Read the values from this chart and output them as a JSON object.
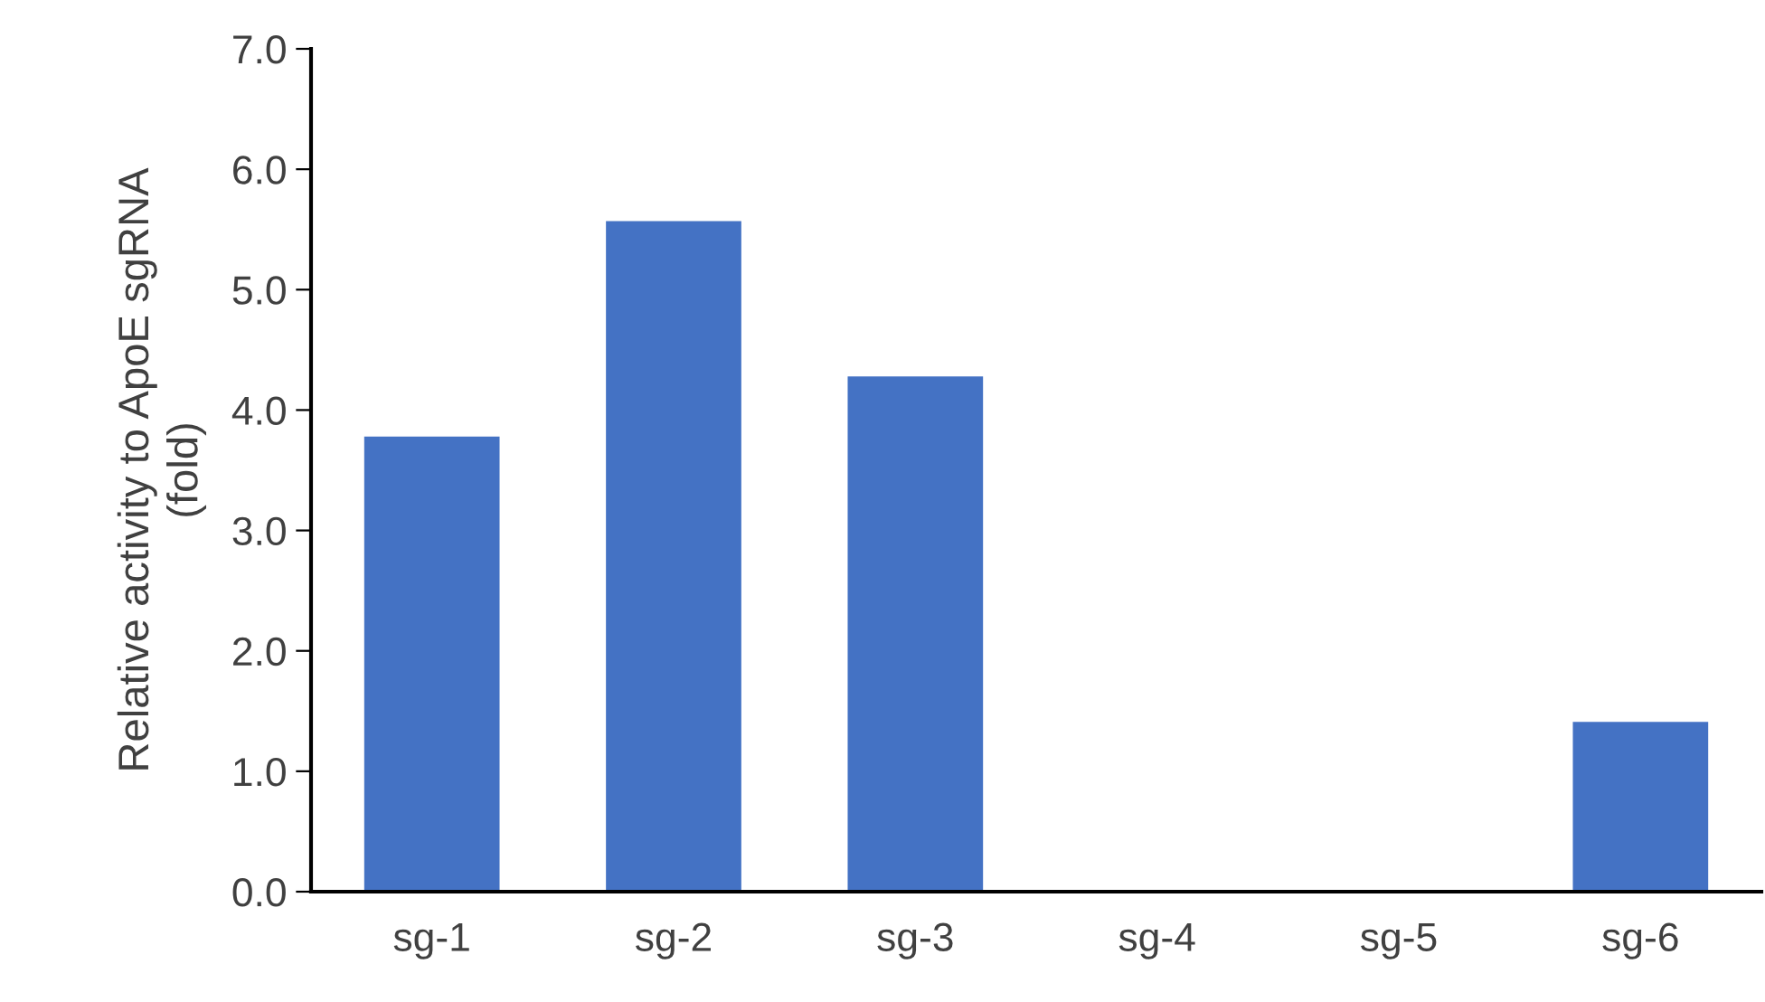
{
  "chart_data": {
    "type": "bar",
    "ylabel": "Relative activity to ApoE sgRNA\n(fold)",
    "categories": [
      "sg-1",
      "sg-2",
      "sg-3",
      "sg-4",
      "sg-5",
      "sg-6"
    ],
    "values": [
      3.78,
      5.57,
      4.28,
      0,
      0,
      1.41
    ],
    "color": "#4472c4",
    "ylim": [
      0,
      7
    ],
    "yticks": [
      {
        "value": 0,
        "label": "0.0"
      },
      {
        "value": 1,
        "label": "1.0"
      },
      {
        "value": 2,
        "label": "2.0"
      },
      {
        "value": 3,
        "label": "3.0"
      },
      {
        "value": 4,
        "label": "4.0"
      },
      {
        "value": 5,
        "label": "5.0"
      },
      {
        "value": 6,
        "label": "6.0"
      },
      {
        "value": 7,
        "label": "7.0"
      }
    ],
    "grid": false,
    "legend": false
  }
}
